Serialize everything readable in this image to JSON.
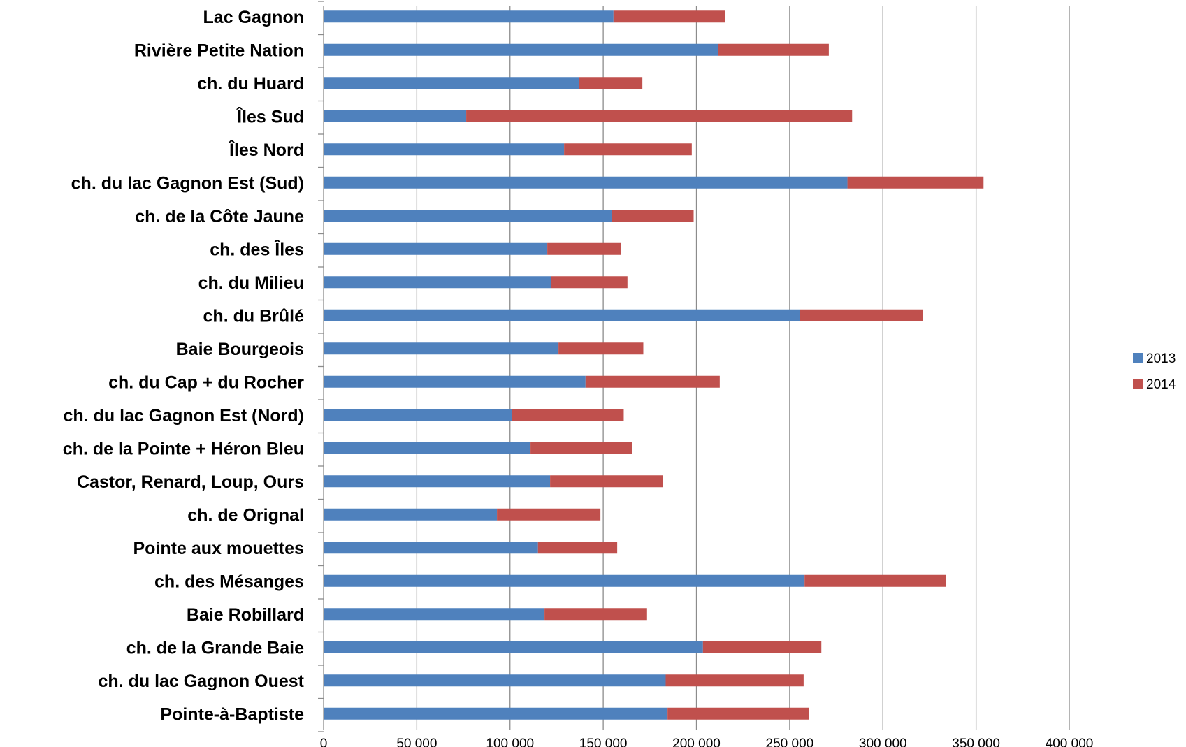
{
  "chart_data": {
    "type": "bar",
    "orientation": "horizontal",
    "stacked": true,
    "categories": [
      "Lac Gagnon",
      "Rivière Petite Nation",
      "ch. du Huard",
      "Îles Sud",
      "Îles Nord",
      "ch. du lac Gagnon Est (Sud)",
      "ch. de la Côte Jaune",
      "ch. des Îles",
      "ch. du Milieu",
      "ch. du Brûlé",
      "Baie Bourgeois",
      "ch. du Cap + du Rocher",
      "ch. du lac Gagnon Est (Nord)",
      "ch. de la Pointe + Héron Bleu",
      "Castor, Renard, Loup, Ours",
      "ch. de Orignal",
      "Pointe aux mouettes",
      "ch. des Mésanges",
      "Baie Robillard",
      "ch. de la Grande Baie",
      "ch. du lac Gagnon Ouest",
      "Pointe-à-Baptiste"
    ],
    "series": [
      {
        "name": "2013",
        "color": "#4F81BD",
        "values": [
          155500,
          211500,
          137000,
          76500,
          129000,
          281000,
          154500,
          120000,
          122000,
          255500,
          126000,
          140500,
          101000,
          111000,
          121500,
          93000,
          115000,
          258000,
          118500,
          203500,
          183500,
          184500
        ]
      },
      {
        "name": "2014",
        "color": "#C0504D",
        "values": [
          60000,
          59500,
          34000,
          207000,
          68500,
          73000,
          44000,
          39500,
          41000,
          66000,
          45500,
          72000,
          60000,
          54500,
          60500,
          55500,
          42500,
          76000,
          55000,
          63500,
          74000,
          76000
        ]
      }
    ],
    "x_ticks": [
      "0",
      "50 000",
      "100 000",
      "150 000",
      "200 000",
      "250 000",
      "300 000",
      "350 000",
      "400 000"
    ],
    "xlim": [
      0,
      400000
    ],
    "grid": "vertical",
    "legend_position": "right",
    "title": "",
    "xlabel": "",
    "ylabel": ""
  }
}
